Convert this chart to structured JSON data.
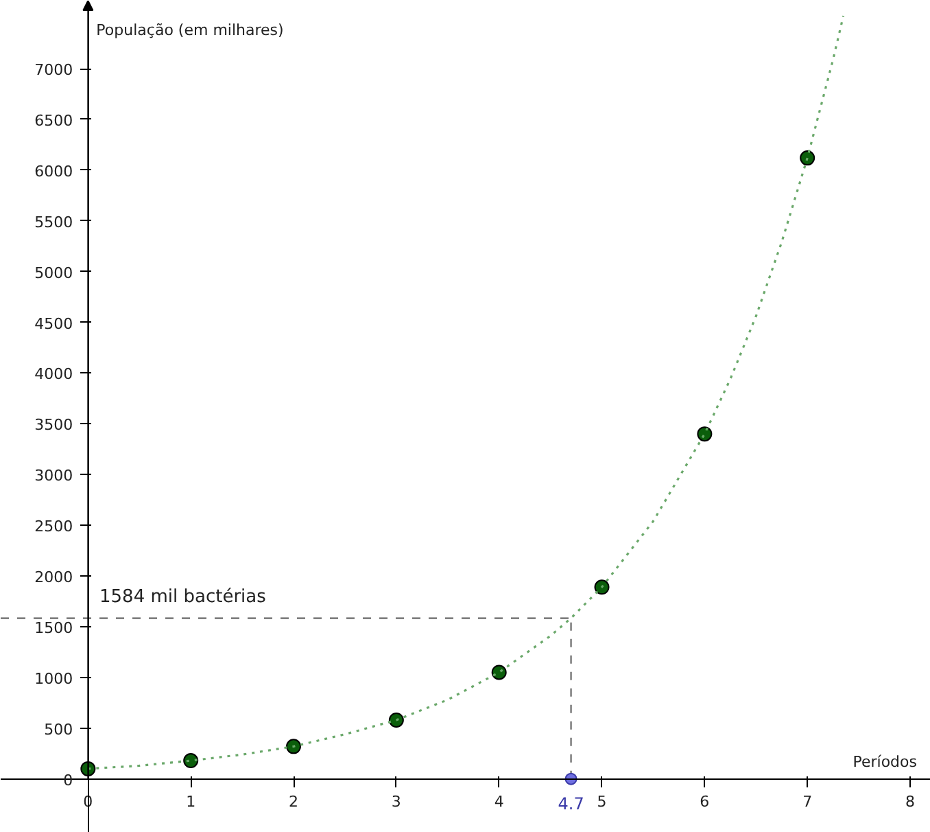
{
  "chart_data": {
    "type": "scatter",
    "xlabel": "Períodos",
    "ylabel": "População (em milhares)",
    "xlim": [
      -0.85,
      8.2
    ],
    "ylim": [
      -530,
      7670
    ],
    "xticks": [
      0,
      1,
      2,
      3,
      4,
      5,
      6,
      7,
      8
    ],
    "yticks": [
      0,
      500,
      1000,
      1500,
      2000,
      2500,
      3000,
      3500,
      4000,
      4500,
      5000,
      5500,
      6000,
      6500,
      7000
    ],
    "grid": false,
    "marker": "circle",
    "series": [
      {
        "color": "#0b5e0b",
        "x": [
          0,
          1,
          2,
          3,
          4,
          5,
          6,
          7
        ],
        "values": [
          100,
          180,
          320,
          580,
          1050,
          1890,
          3400,
          6120
        ]
      },
      {
        "type": "line",
        "color": "#6aa86a",
        "line_style": "dotted",
        "marker": "none",
        "x": [
          0,
          0.5,
          1,
          1.5,
          2,
          2.5,
          3,
          3.5,
          4,
          4.5,
          4.7,
          5,
          5.5,
          6,
          6.25,
          6.5,
          6.75,
          7,
          7.25,
          7.35
        ],
        "values": [
          100,
          130,
          180,
          240,
          320,
          440,
          580,
          780,
          1050,
          1410,
          1584,
          1890,
          2540,
          3400,
          3940,
          4560,
          5290,
          6120,
          7090,
          7520
        ]
      },
      {
        "type": "scatter",
        "color": "#6f6fe0",
        "x": [
          4.7
        ],
        "values": [
          0
        ]
      }
    ],
    "ref_lines": [
      {
        "axis": "y",
        "value": 1584,
        "label": "1584 mil bactérias",
        "color": "#555555",
        "line_style": "dashed"
      },
      {
        "axis": "x",
        "value": 4.7,
        "label": "4.7",
        "color": "#555555",
        "line_style": "dashed"
      }
    ]
  }
}
